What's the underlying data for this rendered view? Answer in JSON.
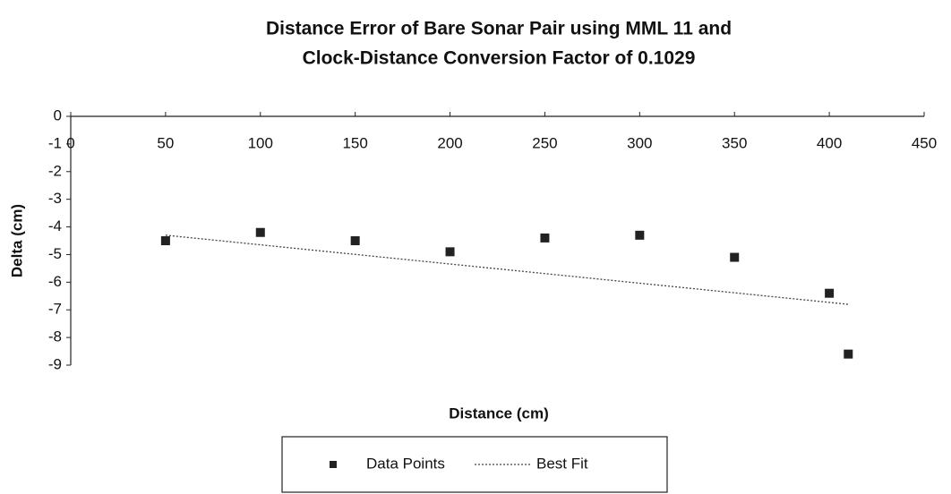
{
  "chart_data": {
    "type": "scatter",
    "title": "Distance Error of Bare Sonar Pair using MML 11 and",
    "subtitle": "Clock-Distance Conversion Factor of 0.1029",
    "x_label": "Distance (cm)",
    "y_label": "Delta (cm)",
    "xlim": [
      0,
      450
    ],
    "xticks": [
      0,
      50,
      100,
      150,
      200,
      250,
      300,
      350,
      400,
      450
    ],
    "ylim": [
      -9,
      0
    ],
    "yticks": [
      0,
      -1,
      -2,
      -3,
      -4,
      -5,
      -6,
      -7,
      -8,
      -9
    ],
    "series": [
      {
        "name": "Data Points",
        "color": "#222222",
        "x": [
          50,
          100,
          150,
          200,
          250,
          300,
          350,
          400,
          410
        ],
        "values": [
          -4.5,
          -4.2,
          -4.5,
          -4.9,
          -4.4,
          -4.3,
          -5.1,
          -6.4,
          -8.6
        ]
      },
      {
        "name": "Best Fit",
        "color": "#444444",
        "line": "dotted",
        "x": [
          50,
          410
        ],
        "values": [
          -4.3,
          -6.8
        ]
      }
    ]
  }
}
